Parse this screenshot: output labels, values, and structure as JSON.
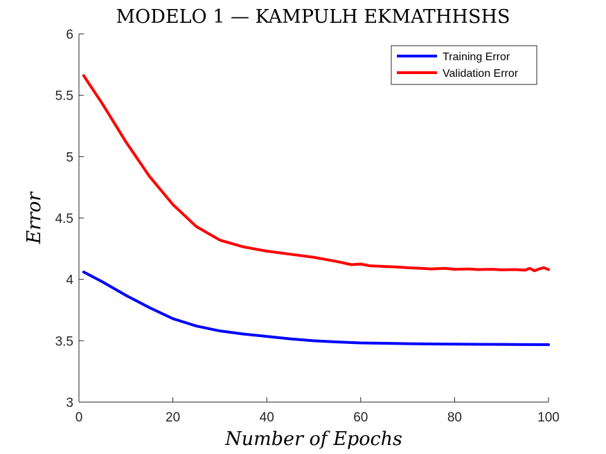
{
  "chart_data": {
    "type": "line",
    "title": "MODELO 1 — KAMPULH EKMATHHSHS",
    "xlabel": "Number of Epochs",
    "ylabel": "Error",
    "xlim": [
      0,
      100
    ],
    "ylim": [
      3,
      6
    ],
    "xticks": [
      0,
      20,
      40,
      60,
      80,
      100
    ],
    "yticks": [
      3,
      3.5,
      4,
      4.5,
      5,
      5.5,
      6
    ],
    "grid": false,
    "legend_position": "top-right",
    "series": [
      {
        "name": "Training Error",
        "color": "#0000ff",
        "x": [
          1,
          5,
          10,
          15,
          20,
          25,
          30,
          35,
          40,
          45,
          50,
          55,
          60,
          65,
          70,
          75,
          80,
          85,
          90,
          95,
          100
        ],
        "y": [
          4.06,
          3.98,
          3.87,
          3.77,
          3.68,
          3.62,
          3.58,
          3.555,
          3.535,
          3.515,
          3.5,
          3.49,
          3.482,
          3.479,
          3.476,
          3.474,
          3.472,
          3.471,
          3.47,
          3.469,
          3.468
        ]
      },
      {
        "name": "Validation Error",
        "color": "#ff0000",
        "x": [
          1,
          5,
          10,
          15,
          20,
          25,
          30,
          35,
          40,
          45,
          50,
          55,
          58,
          60,
          62,
          65,
          68,
          70,
          73,
          75,
          78,
          80,
          83,
          85,
          88,
          90,
          93,
          95,
          96,
          97,
          98,
          99,
          100
        ],
        "y": [
          5.66,
          5.43,
          5.12,
          4.84,
          4.61,
          4.43,
          4.32,
          4.265,
          4.23,
          4.205,
          4.18,
          4.145,
          4.12,
          4.125,
          4.11,
          4.105,
          4.1,
          4.095,
          4.09,
          4.085,
          4.09,
          4.082,
          4.085,
          4.08,
          4.082,
          4.078,
          4.08,
          4.075,
          4.09,
          4.07,
          4.085,
          4.095,
          4.08
        ]
      }
    ]
  }
}
